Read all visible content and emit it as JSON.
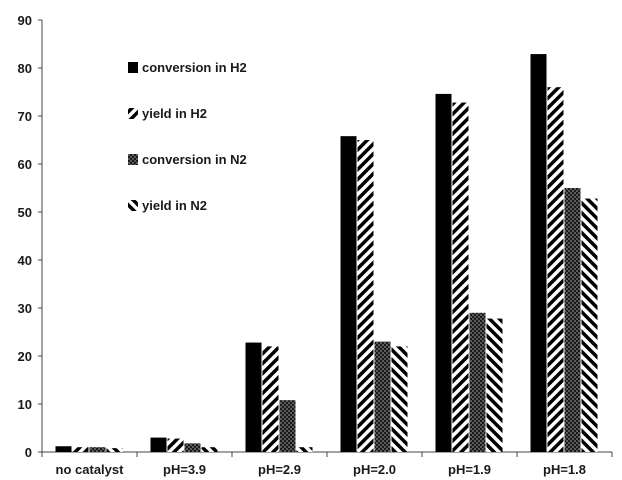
{
  "chart_data": {
    "type": "bar",
    "title": "",
    "xlabel": "",
    "ylabel": "",
    "categories": [
      "no catalyst",
      "pH=3.9",
      "pH=2.9",
      "pH=2.0",
      "pH=1.9",
      "pH=1.8"
    ],
    "ylim": [
      0,
      90
    ],
    "yticks": [
      0,
      10,
      20,
      30,
      40,
      50,
      60,
      70,
      80,
      90
    ],
    "grid": false,
    "legend_position": "top-left",
    "series": [
      {
        "name": "conversion in H2",
        "values": [
          1.2,
          3.0,
          22.8,
          65.8,
          74.6,
          82.9
        ],
        "fill": "solid",
        "color": "#000000"
      },
      {
        "name": "yield in H2",
        "values": [
          1.0,
          2.8,
          22.0,
          65.0,
          72.8,
          76.0
        ],
        "fill": "diagonal-down",
        "color": "#000000"
      },
      {
        "name": "conversion in N2",
        "values": [
          1.0,
          1.8,
          10.8,
          23.0,
          29.0,
          55.0
        ],
        "fill": "crosshatch",
        "color": "#333333"
      },
      {
        "name": "yield in N2",
        "values": [
          0.8,
          1.0,
          1.0,
          22.0,
          27.8,
          52.8
        ],
        "fill": "diagonal-up",
        "color": "#000000"
      }
    ]
  }
}
